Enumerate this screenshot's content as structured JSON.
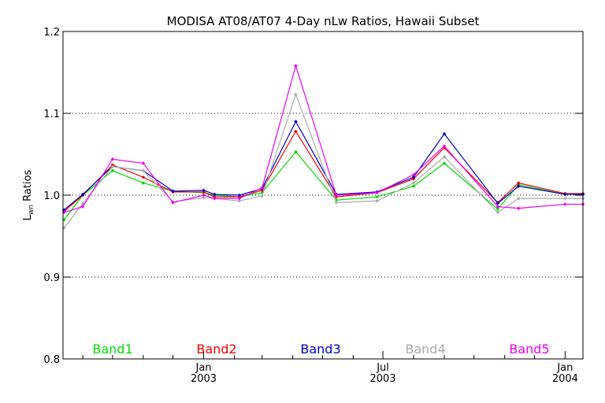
{
  "chart_data": {
    "type": "line",
    "title": "MODISA AT08/AT07 4-Day nLw Ratios, Hawaii Subset",
    "ylabel_main": "L",
    "ylabel_sub": "wn",
    "ylabel_tail": " Ratios",
    "ylim": [
      0.8,
      1.2
    ],
    "yticks": [
      {
        "value": 0.8,
        "label": "0.8"
      },
      {
        "value": 0.9,
        "label": "0.9"
      },
      {
        "value": 1.0,
        "label": "1.0"
      },
      {
        "value": 1.1,
        "label": "1.1"
      },
      {
        "value": 1.2,
        "label": "1.2"
      }
    ],
    "grid_y": [
      0.9,
      1.0,
      1.1
    ],
    "xlim": [
      "2002-08-12",
      "2004-01-19"
    ],
    "xticks": [
      {
        "date": "2003-01-01",
        "label1": "Jan",
        "label2": "2003"
      },
      {
        "date": "2003-07-01",
        "label1": "Jul",
        "label2": "2003"
      },
      {
        "date": "2004-01-01",
        "label1": "Jan",
        "label2": "2004"
      }
    ],
    "x_minor_ticks": [
      "2002-09-01",
      "2002-10-01",
      "2002-11-01",
      "2002-12-01",
      "2003-02-01",
      "2003-03-01",
      "2003-04-01",
      "2003-05-01",
      "2003-06-01",
      "2003-08-01",
      "2003-09-01",
      "2003-10-01",
      "2003-11-01",
      "2003-12-01"
    ],
    "x": [
      "2002-08-13",
      "2002-09-01",
      "2002-10-01",
      "2002-11-01",
      "2002-12-01",
      "2003-01-01",
      "2003-01-12",
      "2003-02-06",
      "2003-03-01",
      "2003-04-04",
      "2003-05-15",
      "2003-06-25",
      "2003-08-01",
      "2003-09-01",
      "2003-10-25",
      "2003-11-15",
      "2004-01-01",
      "2004-01-19"
    ],
    "series": [
      {
        "name": "Band1",
        "color": "#00dd00",
        "values": [
          0.97,
          1.0,
          1.03,
          1.015,
          1.005,
          1.003,
          1.0,
          0.998,
          1.003,
          1.053,
          0.994,
          0.998,
          1.011,
          1.039,
          0.983,
          1.013,
          1.001,
          1.001
        ]
      },
      {
        "name": "Band2",
        "color": "#ee0000",
        "values": [
          0.98,
          1.0,
          1.037,
          1.022,
          1.004,
          1.004,
          0.998,
          0.998,
          1.006,
          1.078,
          0.998,
          1.003,
          1.02,
          1.058,
          0.991,
          1.015,
          1.002,
          1.002
        ]
      },
      {
        "name": "Band3",
        "color": "#0000cc",
        "values": [
          0.982,
          1.001,
          1.035,
          1.03,
          1.005,
          1.006,
          1.001,
          1.0,
          1.008,
          1.09,
          1.001,
          1.004,
          1.022,
          1.075,
          0.99,
          1.011,
          1.001,
          1.001
        ]
      },
      {
        "name": "Band4",
        "color": "#aaaaaa",
        "values": [
          0.96,
          0.99,
          1.035,
          1.03,
          0.992,
          0.997,
          0.996,
          0.993,
          0.999,
          1.123,
          0.991,
          0.993,
          1.015,
          1.047,
          0.979,
          0.996,
          0.996,
          0.996
        ]
      },
      {
        "name": "Band5",
        "color": "#ee00ee",
        "values": [
          0.979,
          0.986,
          1.044,
          1.039,
          0.991,
          1.0,
          0.996,
          0.996,
          1.009,
          1.158,
          1.0,
          1.003,
          1.025,
          1.06,
          0.986,
          0.984,
          0.989,
          0.989
        ]
      }
    ],
    "legend": "bottom, inside plot, horizontal"
  }
}
